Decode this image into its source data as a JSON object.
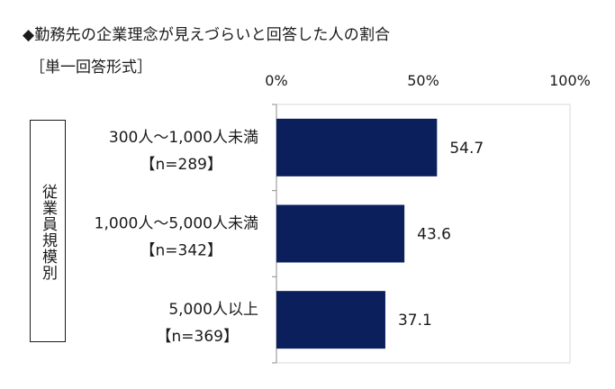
{
  "title": "◆勤務先の企業理念が見えづらいと回答した人の割合",
  "subtitle": "［単一回答形式］",
  "chart_data": {
    "type": "bar",
    "orientation": "horizontal",
    "ylabel": "従業員規模別",
    "xlim": [
      0,
      100
    ],
    "ticks": [
      "0%",
      "50%",
      "100%"
    ],
    "tick_values": [
      0,
      50,
      100
    ],
    "categories": [
      {
        "name": "300人～1,000人未満",
        "n": "【n=289】"
      },
      {
        "name": "1,000人～5,000人未満",
        "n": "【n=342】"
      },
      {
        "name": "5,000人以上",
        "n": "【n=369】"
      }
    ],
    "values": [
      54.7,
      43.6,
      37.1
    ],
    "value_labels": [
      "54.7",
      "43.6",
      "37.1"
    ],
    "bar_color": "#0b1f5c",
    "grid": false
  }
}
